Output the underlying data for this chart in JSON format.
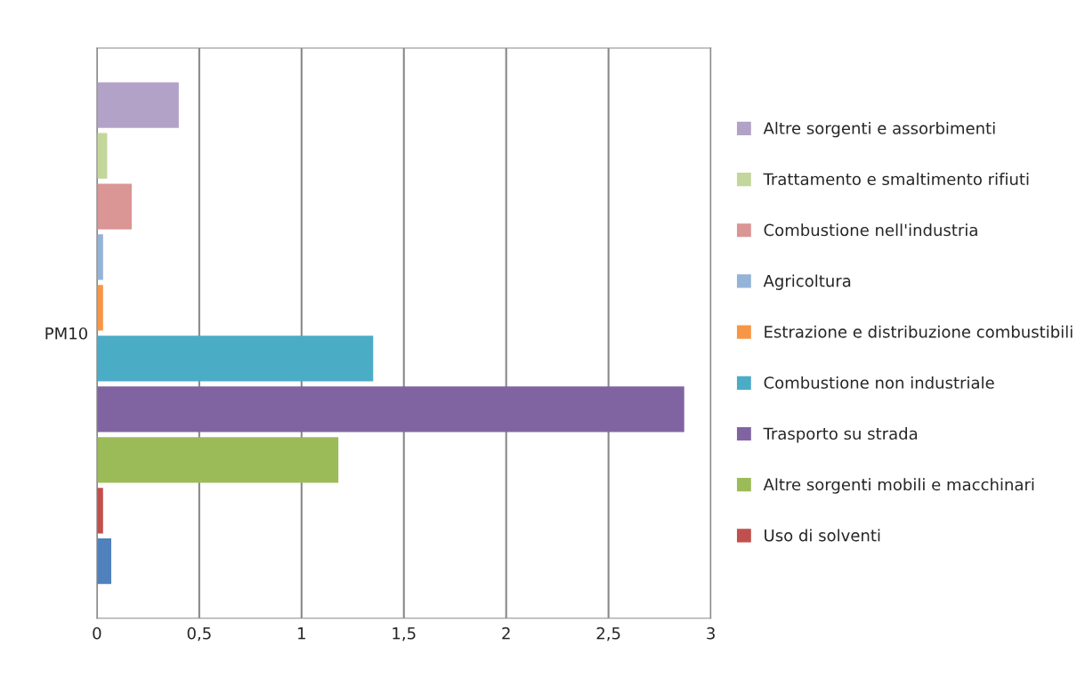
{
  "chart_data": {
    "type": "bar",
    "orientation": "horizontal",
    "categories": [
      "PM10"
    ],
    "series": [
      {
        "color": "#4f81bd",
        "values": [
          0.07
        ]
      },
      {
        "name": "Uso di solventi",
        "color": "#c0504d",
        "values": [
          0.03
        ]
      },
      {
        "name": "Altre sorgenti mobili e macchinari",
        "color": "#9bbb59",
        "values": [
          1.18
        ]
      },
      {
        "name": "Trasporto su strada",
        "color": "#8064a2",
        "values": [
          2.87
        ]
      },
      {
        "name": "Combustione non industriale",
        "color": "#4bacc6",
        "values": [
          1.35
        ]
      },
      {
        "name": "Estrazione e distribuzione combustibili",
        "color": "#f79646",
        "values": [
          0.03
        ]
      },
      {
        "name": "Agricoltura",
        "color": "#95b3d7",
        "values": [
          0.03
        ]
      },
      {
        "name": "Combustione nell'industria",
        "color": "#d99694",
        "values": [
          0.17
        ]
      },
      {
        "name": "Trattamento e smaltimento rifiuti",
        "color": "#c3d69b",
        "values": [
          0.05
        ]
      },
      {
        "name": "Altre sorgenti e assorbimenti",
        "color": "#b3a2c7",
        "values": [
          0.4
        ]
      }
    ],
    "xlim": [
      0,
      3
    ],
    "xticks": [
      0,
      {
        "value": 0.5,
        "label": "0,5"
      },
      1,
      {
        "value": 1.5,
        "label": "1,5"
      },
      2,
      {
        "value": 2.5,
        "label": "2,5"
      },
      3
    ],
    "grid": "x",
    "legend": "right"
  }
}
